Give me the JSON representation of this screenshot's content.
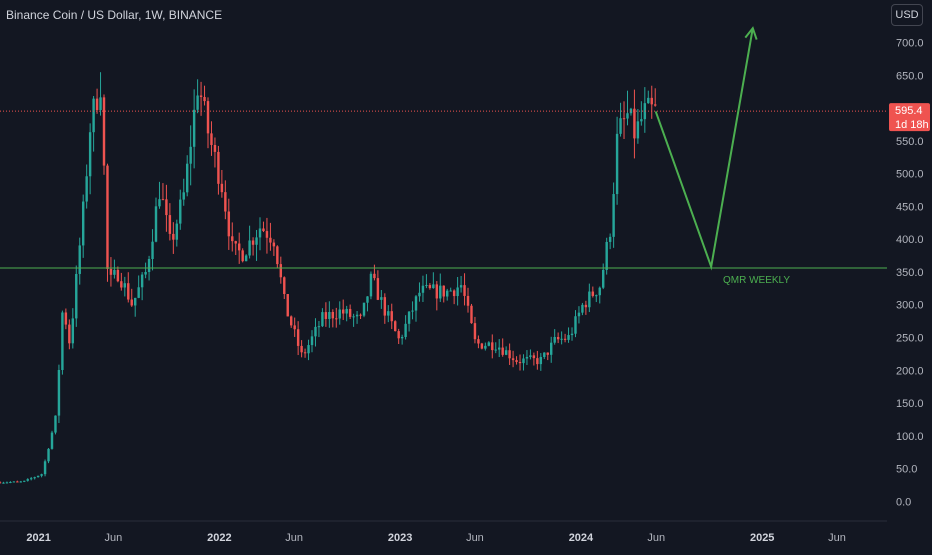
{
  "header": {
    "symbol_title": "Binance Coin / US Dollar, 1W, BINANCE",
    "currency_label": "USD"
  },
  "colors": {
    "background": "#131722",
    "up": "#26a69a",
    "down": "#ef5350",
    "text": "#d1d4dc",
    "axis_text": "#b2b5be",
    "level_line": "#4caf50",
    "projection": "#4caf50",
    "last_price_line": "#ef5350"
  },
  "chart_data": {
    "type": "candlestick",
    "title": "Binance Coin / US Dollar, 1W, BINANCE",
    "interval": "1W",
    "currency": "USD",
    "y_ticks": [
      0,
      50,
      100,
      150,
      200,
      250,
      300,
      350,
      400,
      450,
      500,
      550,
      600,
      650,
      700
    ],
    "y_tick_labels": [
      "0.0",
      "50.0",
      "100.0",
      "150.0",
      "200.0",
      "250.0",
      "300.0",
      "350.0",
      "400.0",
      "450.0",
      "500.0",
      "550.0",
      "600.0",
      "650.0",
      "700.0"
    ],
    "ylim": [
      -30,
      765
    ],
    "x_ticks": [
      {
        "date": "2021-01-01",
        "label": "2021",
        "bold": true
      },
      {
        "date": "2021-06-01",
        "label": "Jun",
        "bold": false
      },
      {
        "date": "2022-01-01",
        "label": "2022",
        "bold": true
      },
      {
        "date": "2022-06-01",
        "label": "Jun",
        "bold": false
      },
      {
        "date": "2023-01-01",
        "label": "2023",
        "bold": true
      },
      {
        "date": "2023-06-01",
        "label": "Jun",
        "bold": false
      },
      {
        "date": "2024-01-01",
        "label": "2024",
        "bold": true
      },
      {
        "date": "2024-06-01",
        "label": "Jun",
        "bold": false
      },
      {
        "date": "2025-01-01",
        "label": "2025",
        "bold": true
      },
      {
        "date": "2025-06-01",
        "label": "Jun",
        "bold": false
      }
    ],
    "xlim": [
      "2020-10-15",
      "2025-09-10"
    ],
    "price_anchors": [
      [
        "2020-10-15",
        29
      ],
      [
        "2020-12-01",
        30
      ],
      [
        "2021-01-08",
        42
      ],
      [
        "2021-02-05",
        130
      ],
      [
        "2021-02-19",
        300
      ],
      [
        "2021-03-05",
        240
      ],
      [
        "2021-04-02",
        450
      ],
      [
        "2021-04-16",
        580
      ],
      [
        "2021-05-07",
        640
      ],
      [
        "2021-05-21",
        330
      ],
      [
        "2021-06-11",
        350
      ],
      [
        "2021-07-09",
        300
      ],
      [
        "2021-08-06",
        350
      ],
      [
        "2021-09-03",
        480
      ],
      [
        "2021-09-24",
        390
      ],
      [
        "2021-10-22",
        470
      ],
      [
        "2021-11-19",
        640
      ],
      [
        "2021-12-10",
        560
      ],
      [
        "2022-01-07",
        480
      ],
      [
        "2022-01-28",
        380
      ],
      [
        "2022-02-18",
        380
      ],
      [
        "2022-03-25",
        420
      ],
      [
        "2022-04-22",
        400
      ],
      [
        "2022-05-13",
        300
      ],
      [
        "2022-06-17",
        220
      ],
      [
        "2022-07-29",
        280
      ],
      [
        "2022-09-02",
        290
      ],
      [
        "2022-10-14",
        275
      ],
      [
        "2022-11-04",
        340
      ],
      [
        "2022-12-02",
        290
      ],
      [
        "2022-12-30",
        245
      ],
      [
        "2023-02-10",
        320
      ],
      [
        "2023-04-07",
        320
      ],
      [
        "2023-05-05",
        330
      ],
      [
        "2023-06-02",
        240
      ],
      [
        "2023-07-14",
        240
      ],
      [
        "2023-08-25",
        215
      ],
      [
        "2023-10-13",
        215
      ],
      [
        "2023-11-10",
        245
      ],
      [
        "2023-12-08",
        250
      ],
      [
        "2024-01-05",
        300
      ],
      [
        "2024-02-09",
        330
      ],
      [
        "2024-03-01",
        420
      ],
      [
        "2024-03-15",
        560
      ],
      [
        "2024-04-05",
        590
      ],
      [
        "2024-04-19",
        560
      ],
      [
        "2024-05-10",
        595
      ],
      [
        "2024-05-31",
        595
      ]
    ],
    "last_price": {
      "value": 595.4,
      "label": "595.4",
      "countdown": "1d 18h"
    },
    "annotations": {
      "qmr_level": {
        "value": 356,
        "label": "QMR WEEKLY"
      },
      "projection_path": [
        {
          "date": "2024-05-31",
          "value": 595
        },
        {
          "date": "2024-09-20",
          "value": 358
        },
        {
          "date": "2024-12-13",
          "value": 722
        }
      ]
    }
  }
}
